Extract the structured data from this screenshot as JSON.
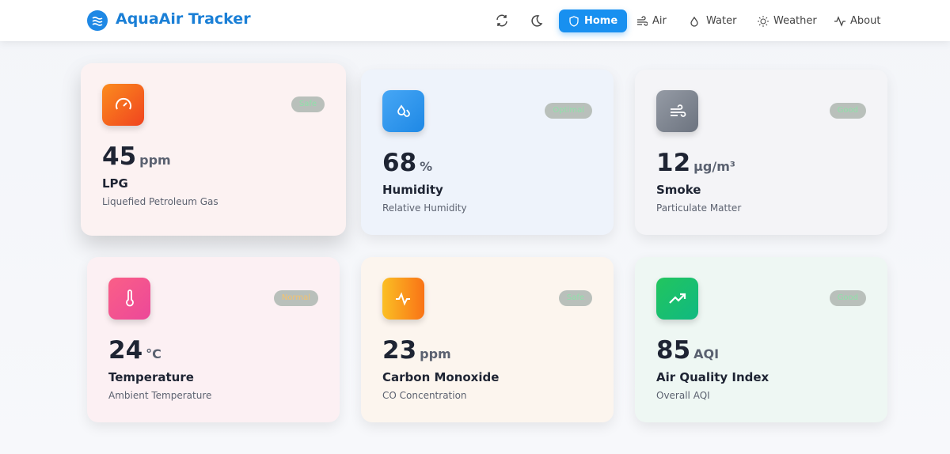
{
  "header": {
    "title": "AquaAir Tracker",
    "nav": [
      "Home",
      "Air",
      "Water",
      "Weather",
      "About"
    ]
  },
  "cards": [
    {
      "value": 45,
      "unit": "ppm",
      "title": "LPG",
      "subtitle": "Liquefied Petroleum Gas",
      "status": "Safe"
    },
    {
      "value": 68,
      "unit": "%",
      "title": "Humidity",
      "subtitle": "Relative Humidity",
      "status": "Optimal"
    },
    {
      "value": 12,
      "unit": "μg/m³",
      "title": "Smoke",
      "subtitle": "Particulate Matter",
      "status": "Good"
    },
    {
      "value": 24,
      "unit": "°C",
      "title": "Temperature",
      "subtitle": "Ambient Temperature",
      "status": "Normal"
    },
    {
      "value": 23,
      "unit": "ppm",
      "title": "Carbon Monoxide",
      "subtitle": "CO Concentration",
      "status": "Safe"
    },
    {
      "value": 85,
      "unit": "AQI",
      "title": "Air Quality Index",
      "subtitle": "Overall AQI",
      "status": "Good"
    }
  ]
}
